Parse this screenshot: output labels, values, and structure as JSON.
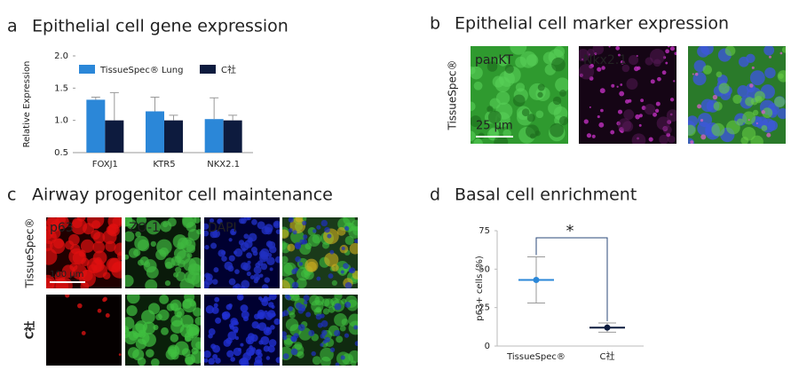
{
  "panel_labels": [
    "a",
    "b",
    "c",
    "d"
  ],
  "chart_data": [
    {
      "type": "bar",
      "title": "Epithelial cell gene expression",
      "ylabel": "Relative Expression",
      "categories": [
        "FOXJ1",
        "KTR5",
        "NKX2.1"
      ],
      "series": [
        {
          "name": "TissueSpec® Lung",
          "color": "#2b87d8",
          "values": [
            1.32,
            1.14,
            1.02
          ],
          "errors": [
            0.04,
            0.22,
            0.33
          ]
        },
        {
          "name": "C社",
          "color": "#0d1b3e",
          "values": [
            1.0,
            1.0,
            1.0
          ],
          "errors": [
            0.43,
            0.08,
            0.08
          ]
        }
      ],
      "ylim": [
        0.5,
        2.0
      ],
      "yticks": [
        0.5,
        {
          "value": 1,
          "label": "1.0"
        },
        1.5,
        {
          "value": 2,
          "label": "2.0"
        }
      ],
      "legend": "top"
    },
    {
      "type": "point",
      "title": "Basal cell enrichment",
      "ylabel": "p63+ cells (%)",
      "categories": [
        "TissueSpec®",
        "C社"
      ],
      "values": [
        43,
        12
      ],
      "errors": [
        15,
        3
      ],
      "colors": [
        "#2b87d8",
        "#0d1b3e"
      ],
      "ylim": [
        0,
        75
      ],
      "yticks": [
        0,
        25,
        50,
        75
      ],
      "annotation": "*"
    }
  ],
  "image_panels": [
    {
      "title": "Epithelial cell marker expression",
      "row_labels": [
        "TissueSpec®"
      ],
      "channels": [
        "panKT",
        "Nkx2.1"
      ],
      "scale_bar": "25 μm"
    },
    {
      "title": "Airway progenitor cell maintenance",
      "row_labels": [
        "TissueSpec®",
        "C社"
      ],
      "channels": [
        "p63",
        "ZO-1",
        "DAPI"
      ],
      "scale_bar": "100 μm"
    }
  ]
}
